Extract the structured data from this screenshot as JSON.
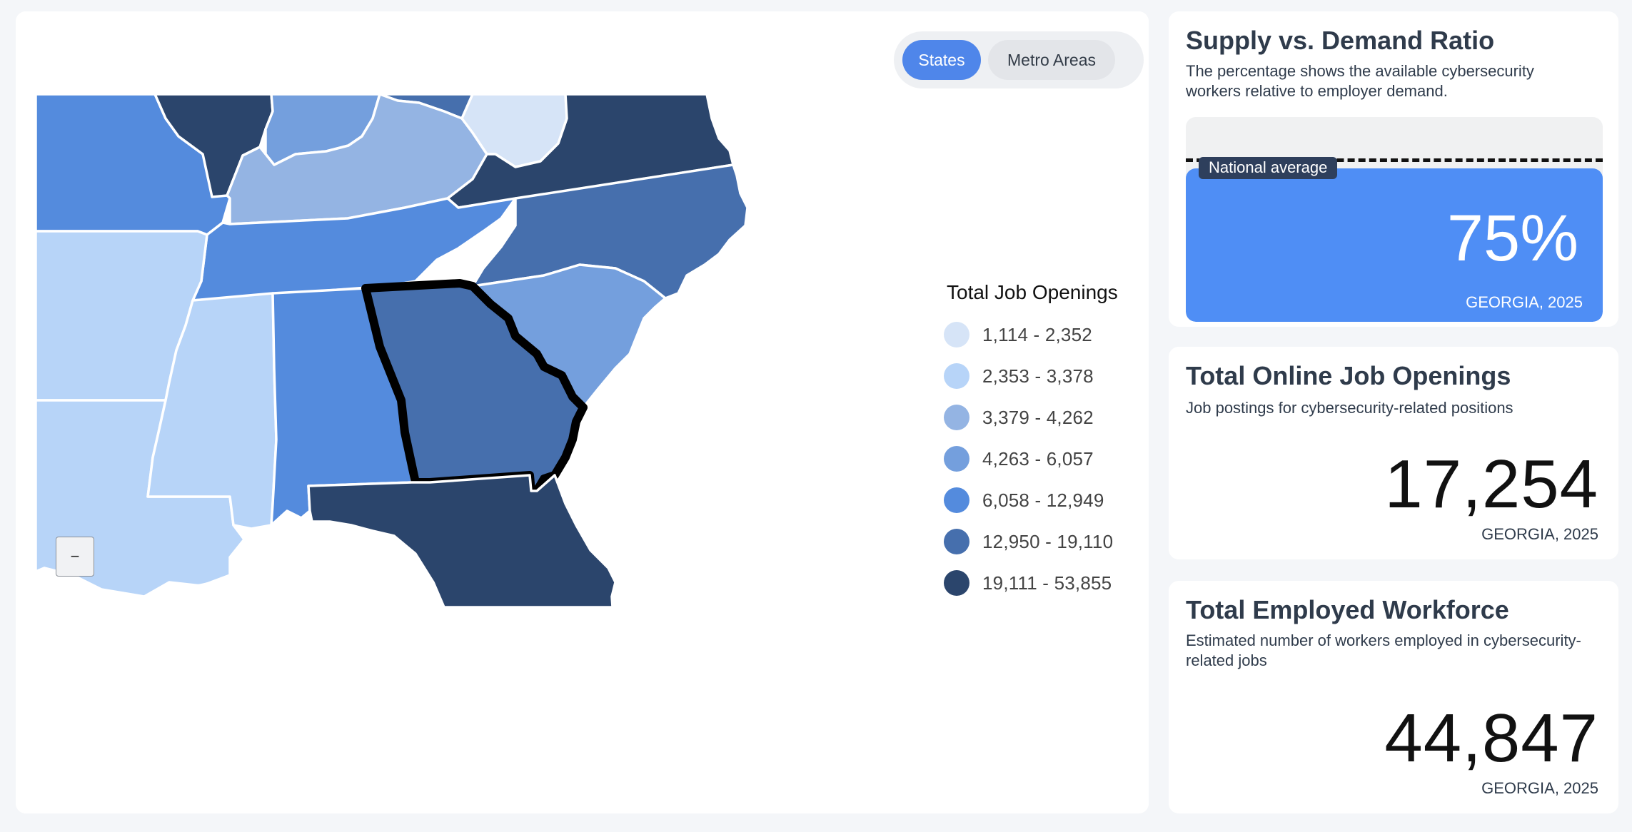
{
  "map": {
    "view_toggle": {
      "options": [
        "States",
        "Metro Areas"
      ],
      "selected": "States"
    },
    "zoom_out_label": "−",
    "selected_state": "Georgia",
    "legend": {
      "title": "Total Job Openings",
      "bins": [
        {
          "label": "1,114 - 2,352",
          "color": "#d6e4f7"
        },
        {
          "label": "2,353 - 3,378",
          "color": "#b7d4f8"
        },
        {
          "label": "3,379 - 4,262",
          "color": "#94b4e3"
        },
        {
          "label": "4,263 - 6,057",
          "color": "#749fdd"
        },
        {
          "label": "6,058 - 12,949",
          "color": "#548bdd"
        },
        {
          "label": "12,950 - 19,110",
          "color": "#466fad"
        },
        {
          "label": "19,111 - 53,855",
          "color": "#2b456c"
        }
      ]
    }
  },
  "supply_demand": {
    "title": "Supply vs. Demand Ratio",
    "description": "The percentage shows the available cybersecurity workers relative to employer demand.",
    "benchmark_label": "National average",
    "value": "75%",
    "value_fraction": 0.75,
    "caption": "GEORGIA, 2025"
  },
  "job_openings": {
    "title": "Total Online Job Openings",
    "description": "Job postings for cybersecurity-related positions",
    "value": "17,254",
    "caption": "GEORGIA, 2025"
  },
  "workforce": {
    "title": "Total Employed Workforce",
    "description": "Estimated number of workers employed in cybersecurity-related jobs",
    "value": "44,847",
    "caption": "GEORGIA, 2025"
  },
  "colors": {
    "accent": "#4f86ea",
    "ratio_fill": "#4f8ef5",
    "benchmark_tag": "#2e3f5c"
  }
}
